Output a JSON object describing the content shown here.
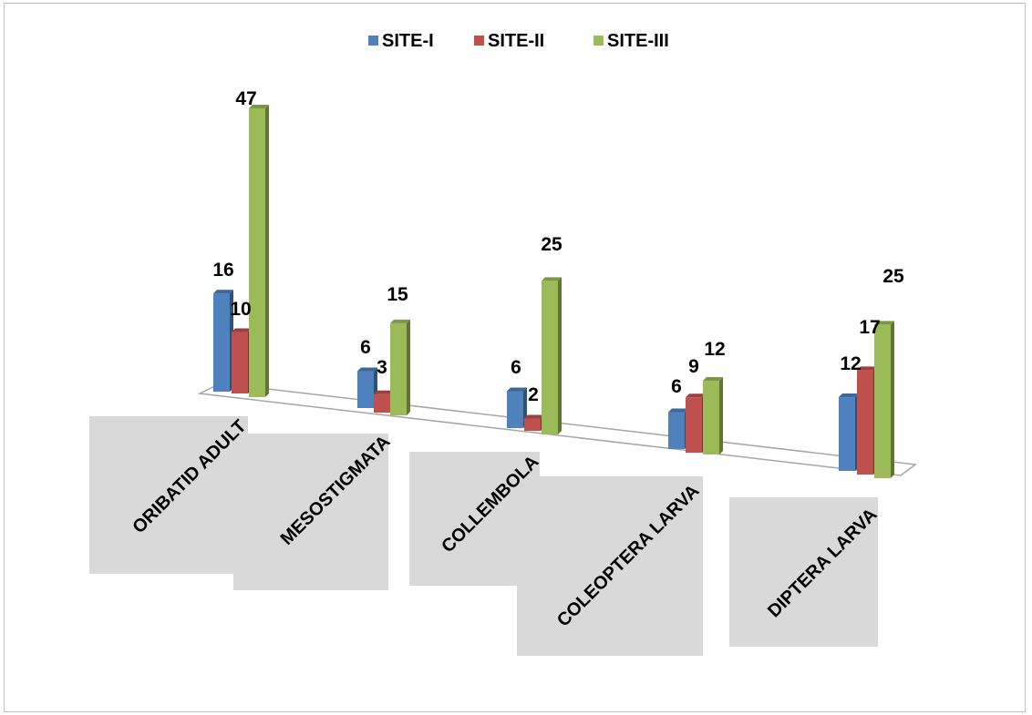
{
  "chart_data": {
    "type": "bar",
    "title": "",
    "xlabel": "",
    "ylabel": "",
    "categories": [
      "ORIBATID ADULT",
      "MESOSTIGMATA",
      "COLLEMBOLA",
      "COLEOPTERA LARVA",
      "DIPTERA LARVA"
    ],
    "series": [
      {
        "name": "SITE-I",
        "color": "#4f81bd",
        "values": [
          16,
          6,
          6,
          6,
          12
        ]
      },
      {
        "name": "SITE-II",
        "color": "#c0504d",
        "values": [
          10,
          3,
          2,
          9,
          17
        ]
      },
      {
        "name": "SITE-III",
        "color": "#9bbb59",
        "values": [
          47,
          15,
          25,
          12,
          25
        ]
      }
    ],
    "data_labels_shown": [
      [
        "16",
        "6",
        "6",
        "6",
        "12"
      ],
      [
        "10",
        "3",
        "2",
        "9",
        "17"
      ],
      [
        "47",
        "15",
        "25",
        "12",
        "25"
      ]
    ],
    "legend_position": "top",
    "grid": false,
    "style": "3d-clustered-column"
  }
}
